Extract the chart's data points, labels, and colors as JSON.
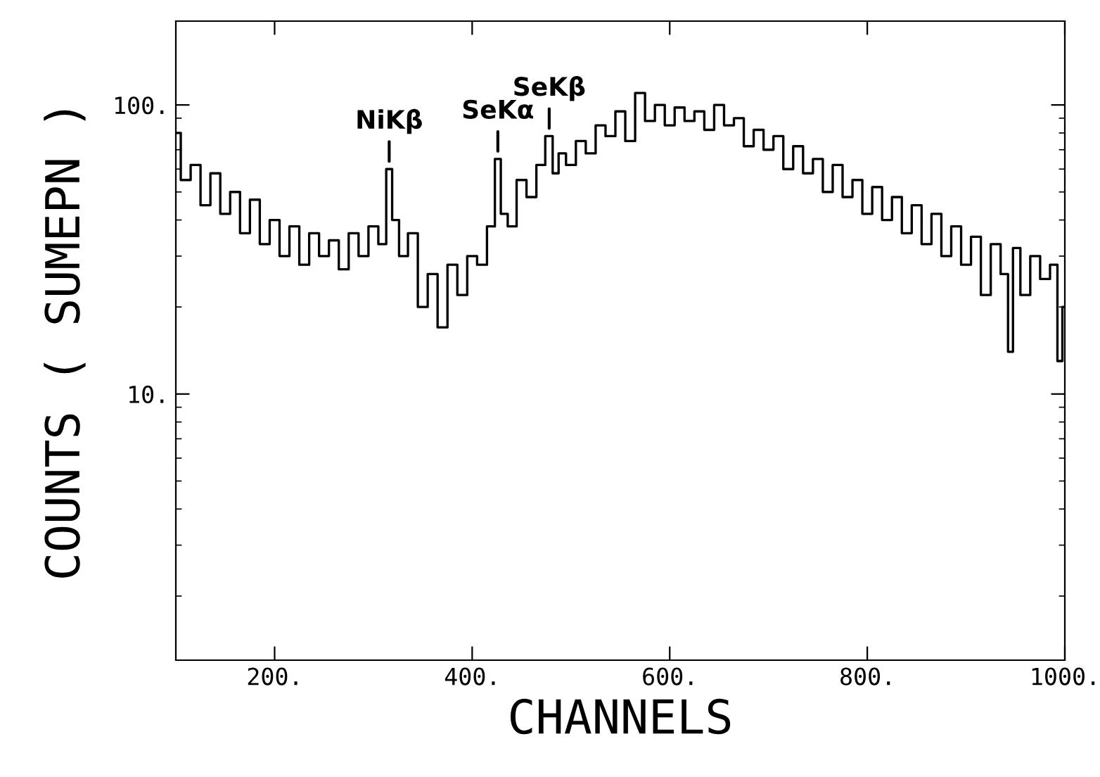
{
  "chart_data": {
    "type": "step",
    "xlabel": "CHANNELS",
    "ylabel": "COUNTS ( SUMEPN )",
    "log": "y",
    "grid": false,
    "legend": false,
    "xlim": [
      100,
      1000
    ],
    "xticks": [
      {
        "value": 200,
        "label": "200."
      },
      {
        "value": 400,
        "label": "400."
      },
      {
        "value": 600,
        "label": "600."
      },
      {
        "value": 800,
        "label": "800."
      },
      {
        "value": 1000,
        "label": "1000."
      }
    ],
    "ylim": [
      1.2,
      195
    ],
    "yticks": [
      {
        "value": 10,
        "label": "10."
      },
      {
        "value": 100,
        "label": "100."
      }
    ],
    "series": [
      {
        "color": "#000000",
        "x": [
          100,
          110,
          120,
          130,
          140,
          150,
          160,
          170,
          180,
          190,
          200,
          210,
          220,
          230,
          240,
          250,
          260,
          270,
          280,
          290,
          300,
          310,
          316,
          322,
          330,
          340,
          350,
          360,
          370,
          380,
          390,
          400,
          410,
          420,
          426,
          432,
          440,
          450,
          460,
          470,
          478,
          485,
          490,
          500,
          510,
          520,
          530,
          540,
          550,
          560,
          570,
          580,
          590,
          600,
          610,
          620,
          630,
          640,
          650,
          660,
          670,
          680,
          690,
          700,
          710,
          720,
          730,
          740,
          750,
          760,
          770,
          780,
          790,
          800,
          810,
          820,
          830,
          840,
          850,
          860,
          870,
          880,
          890,
          900,
          910,
          920,
          930,
          940,
          945,
          950,
          960,
          970,
          980,
          990,
          995,
          1000
        ],
        "values": [
          80,
          55,
          62,
          45,
          58,
          42,
          50,
          36,
          47,
          33,
          40,
          30,
          38,
          28,
          36,
          30,
          34,
          27,
          36,
          30,
          38,
          33,
          60,
          40,
          30,
          36,
          20,
          26,
          17,
          28,
          22,
          30,
          28,
          38,
          65,
          42,
          38,
          55,
          48,
          62,
          78,
          58,
          68,
          62,
          75,
          68,
          85,
          78,
          95,
          75,
          110,
          88,
          100,
          85,
          98,
          88,
          95,
          82,
          100,
          85,
          90,
          72,
          82,
          70,
          78,
          60,
          72,
          58,
          65,
          50,
          62,
          48,
          55,
          42,
          52,
          40,
          48,
          36,
          45,
          33,
          42,
          30,
          38,
          28,
          35,
          22,
          33,
          26,
          14,
          32,
          22,
          30,
          25,
          28,
          13,
          20
        ]
      }
    ],
    "annotations": [
      {
        "text": "NiKβ",
        "x": 316,
        "y": 60
      },
      {
        "text": "SeKα",
        "x": 426,
        "y": 65
      },
      {
        "text": "SeKβ",
        "x": 478,
        "y": 78
      }
    ]
  }
}
